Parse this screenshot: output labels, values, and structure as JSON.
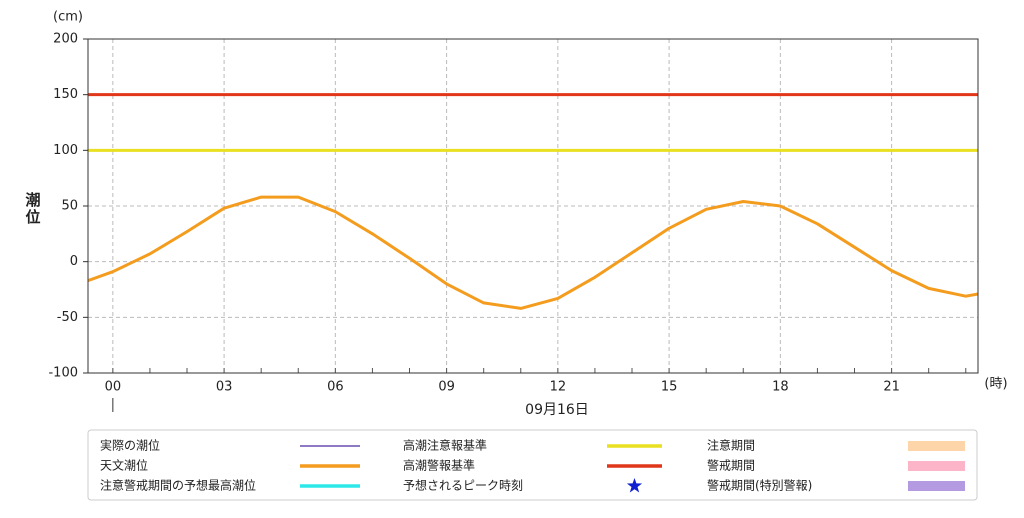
{
  "chart_data": {
    "type": "line",
    "y_unit": "(cm)",
    "y_label": "潮位",
    "x_unit": "(時)",
    "x_label": "09月16日",
    "xlim": [
      -0.67,
      23.33
    ],
    "ylim": [
      -100,
      200
    ],
    "yticks": [
      -100,
      -50,
      0,
      50,
      100,
      150,
      200
    ],
    "xticks": [
      {
        "value": 0,
        "label": "00"
      },
      {
        "value": 3,
        "label": "03"
      },
      {
        "value": 6,
        "label": "06"
      },
      {
        "value": 9,
        "label": "09"
      },
      {
        "value": 12,
        "label": "12"
      },
      {
        "value": 15,
        "label": "15"
      },
      {
        "value": 18,
        "label": "18"
      },
      {
        "value": 21,
        "label": "21"
      }
    ],
    "xminorticks": [
      0,
      1,
      2,
      3,
      4,
      5,
      6,
      7,
      8,
      9,
      10,
      11,
      12,
      13,
      14,
      15,
      16,
      17,
      18,
      19,
      20,
      21,
      22,
      23
    ],
    "grid": true,
    "series": [
      {
        "color": "#f39c1e",
        "x": [
          -0.67,
          0,
          1,
          2,
          3,
          4,
          5,
          6,
          7,
          8,
          9,
          10,
          11,
          12,
          13,
          14,
          15,
          16,
          17,
          18,
          19,
          20,
          21,
          22,
          23,
          23.33
        ],
        "values": [
          -17,
          -9,
          7,
          27,
          48,
          58,
          58,
          45,
          25,
          3,
          -20,
          -37,
          -42,
          -33,
          -14,
          8,
          30,
          47,
          54,
          50,
          34,
          13,
          -8,
          -24,
          -31,
          -29
        ]
      }
    ],
    "reference_lines": [
      {
        "value": 100,
        "color": "#e8e020"
      },
      {
        "value": 150,
        "color": "#e0361a"
      }
    ],
    "legend": [
      {
        "name": "実際の潮位",
        "color": "#4b2a9e",
        "symbol": "line"
      },
      {
        "name": "天文潮位",
        "color": "#f39c1e",
        "symbol": "thick-line"
      },
      {
        "name": "注意警戒期間の予想最高潮位",
        "color": "#2de8e8",
        "symbol": "thick-line"
      },
      {
        "name": "高潮注意報基準",
        "color": "#e8e020",
        "symbol": "thick-line"
      },
      {
        "name": "高潮警報基準",
        "color": "#e0361a",
        "symbol": "thick-line"
      },
      {
        "name": "予想されるピーク時刻",
        "color": "#1020d0",
        "symbol": "star"
      },
      {
        "name": "注意期間",
        "color": "#fdd5a8",
        "symbol": "box"
      },
      {
        "name": "警戒期間",
        "color": "#fcb4c8",
        "symbol": "box"
      },
      {
        "name": "警戒期間(特別警報)",
        "color": "#b49ae0",
        "symbol": "box"
      }
    ]
  }
}
